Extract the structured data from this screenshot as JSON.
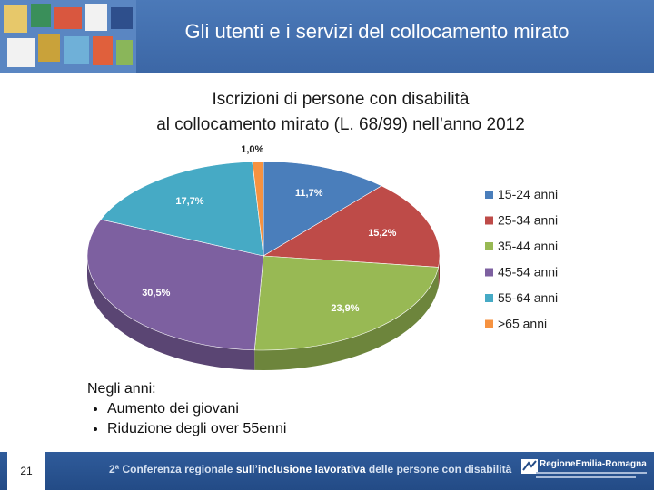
{
  "header": {
    "title": "Gli utenti e i servizi del collocamento mirato"
  },
  "chart_data": {
    "type": "pie",
    "title_lines": [
      "Iscrizioni di persone con disabilità",
      "al collocamento mirato (L. 68/99) nell’anno 2012"
    ],
    "legend_position": "right",
    "slices": [
      {
        "label": "15-24  anni",
        "value": 11.7,
        "value_label": "11,7%",
        "color": "#4a7ebb"
      },
      {
        "label": "25-34 anni",
        "value": 15.2,
        "value_label": "15,2%",
        "color": "#be4b48"
      },
      {
        "label": "35-44 anni",
        "value": 23.9,
        "value_label": "23,9%",
        "color": "#98b954"
      },
      {
        "label": "45-54 anni",
        "value": 30.5,
        "value_label": "30,5%",
        "color": "#7d60a0"
      },
      {
        "label": "55-64 anni",
        "value": 17.7,
        "value_label": "17,7%",
        "color": "#46aac5"
      },
      {
        "label": ">65 anni",
        "value": 1.0,
        "value_label": "1,0%",
        "color": "#f69240"
      }
    ]
  },
  "notes": {
    "heading": "Negli anni:",
    "bullets": [
      "Aumento dei giovani",
      "Riduzione degli over 55enni"
    ]
  },
  "footer": {
    "page_number": "21",
    "conference_part1": "2ª Conferenza regionale ",
    "conference_part2": "sull’inclusione lavorativa",
    "conference_part3": " delle persone con disabilità"
  },
  "logo": {
    "name": "RegioneEmilia-Romagna"
  }
}
